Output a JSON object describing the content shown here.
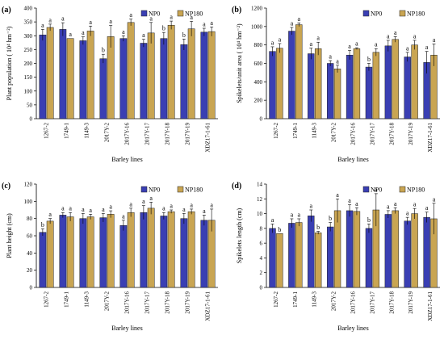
{
  "colors": {
    "np0": "#3a3fb3",
    "np180": "#c9a552"
  },
  "chart_data": [
    {
      "type": "bar",
      "panel_label": "(a)",
      "ylabel": "Plant population ( 10⁴ hm⁻²)",
      "xlabel": "Barley lines",
      "ylim": [
        0,
        400
      ],
      "yticks": [
        "0",
        "50",
        "100",
        "150",
        "200",
        "250",
        "300",
        "350",
        "400"
      ],
      "legend_position": "top-right",
      "categories": [
        "1267-2",
        "1749-1",
        "1149-3",
        "2017Y-2",
        "2017Y-16",
        "2017Y-17",
        "2017Y-18",
        "2017Y-19",
        "XDZ17-1-61"
      ],
      "series": [
        {
          "name": "NP0",
          "values": [
            303,
            323,
            282,
            217,
            290,
            273,
            290,
            268,
            313
          ],
          "errors": [
            20,
            24,
            14,
            16,
            10,
            14,
            22,
            20,
            14
          ],
          "sig": [
            "a",
            "a",
            "a",
            "b",
            "a",
            "a",
            "b",
            "b",
            "a"
          ]
        },
        {
          "name": "NP180",
          "values": [
            330,
            290,
            317,
            297,
            348,
            310,
            338,
            325,
            315
          ],
          "errors": [
            12,
            0,
            18,
            40,
            12,
            38,
            15,
            27,
            17
          ],
          "sig": [
            "a",
            "a",
            "a",
            "a",
            "a",
            "a",
            "a",
            "a",
            "a"
          ]
        }
      ]
    },
    {
      "type": "bar",
      "panel_label": "(b)",
      "ylabel": "Spikelets/unit area ( 10⁴ hm⁻²)",
      "xlabel": "Barley lines",
      "ylim": [
        0,
        1200
      ],
      "yticks": [
        "0",
        "200",
        "400",
        "600",
        "800",
        "1000",
        "1200"
      ],
      "legend_position": "top-right",
      "categories": [
        "1267-2",
        "1749-1",
        "1149-3",
        "2017Y-2",
        "2017Y-16",
        "2017Y-17",
        "2017Y-18",
        "2017Y-19",
        "XDZ17-1-61"
      ],
      "series": [
        {
          "name": "NP0",
          "values": [
            730,
            950,
            705,
            600,
            690,
            560,
            790,
            670,
            610
          ],
          "errors": [
            50,
            40,
            60,
            30,
            50,
            40,
            60,
            50,
            120
          ],
          "sig": [
            "a",
            "a",
            "a",
            "a",
            "a",
            "b",
            "a",
            "a",
            "a"
          ]
        },
        {
          "name": "NP180",
          "values": [
            765,
            1020,
            760,
            540,
            760,
            720,
            860,
            800,
            690
          ],
          "errors": [
            50,
            20,
            70,
            40,
            10,
            40,
            30,
            50,
            120
          ],
          "sig": [
            "a",
            "a",
            "a",
            "a",
            "a",
            "a",
            "a",
            "a",
            "a"
          ]
        }
      ]
    },
    {
      "type": "bar",
      "panel_label": "(c)",
      "ylabel": "Plant height (cm)",
      "xlabel": "Barley lines",
      "ylim": [
        0,
        120
      ],
      "yticks": [
        "0",
        "20",
        "40",
        "60",
        "80",
        "100",
        "120"
      ],
      "legend_position": "top-right",
      "categories": [
        "1267-2",
        "1749-1",
        "1149-3",
        "2017Y-2",
        "2017Y-16",
        "2017Y-17",
        "2017Y-18",
        "2017Y-19",
        "XDZ17-1-61"
      ],
      "series": [
        {
          "name": "NP0",
          "values": [
            64,
            84,
            80,
            81,
            72,
            87,
            83,
            80,
            78
          ],
          "errors": [
            4,
            3,
            6,
            5,
            6,
            8,
            4,
            6,
            6
          ],
          "sig": [
            "b",
            "a",
            "a",
            "a",
            "a",
            "a",
            "a",
            "a",
            "a"
          ]
        },
        {
          "name": "NP180",
          "values": [
            77,
            82,
            82,
            85,
            87,
            92,
            88,
            88,
            78
          ],
          "errors": [
            3,
            5,
            3,
            4,
            5,
            7,
            2,
            3,
            13
          ],
          "sig": [
            "a",
            "a",
            "a",
            "a",
            "a",
            "a",
            "a",
            "a",
            "a"
          ]
        }
      ]
    },
    {
      "type": "bar",
      "panel_label": "(d)",
      "ylabel": "Spikelets length (cm)",
      "xlabel": "Barley lines",
      "ylim": [
        0,
        14
      ],
      "yticks": [
        "0",
        "2",
        "4",
        "6",
        "8",
        "10",
        "12",
        "14"
      ],
      "legend_position": "top-right",
      "categories": [
        "1267-2",
        "1749-1",
        "1149-3",
        "2017Y-2",
        "2017Y-16",
        "2017Y-17",
        "2017Y-18",
        "2017Y-19",
        "XDZ17-1-61"
      ],
      "series": [
        {
          "name": "NP0",
          "values": [
            8.0,
            8.7,
            9.7,
            8.2,
            10.4,
            8.0,
            9.9,
            9.0,
            9.5
          ],
          "errors": [
            0.6,
            0.6,
            0.8,
            0.6,
            0.8,
            0.6,
            0.5,
            0.5,
            0.7
          ],
          "sig": [
            "a",
            "a",
            "a",
            "b",
            "a",
            "b",
            "a",
            "a",
            "a"
          ]
        },
        {
          "name": "NP180",
          "values": [
            7.3,
            8.8,
            7.4,
            10.4,
            10.3,
            10.5,
            10.4,
            10.0,
            9.3
          ],
          "errors": [
            0,
            0.5,
            0.2,
            1.6,
            0.5,
            2.2,
            0.4,
            0.7,
            2.1
          ],
          "sig": [
            "b",
            "a",
            "b",
            "a",
            "a",
            "a",
            "a",
            "a",
            "a"
          ]
        }
      ]
    }
  ]
}
